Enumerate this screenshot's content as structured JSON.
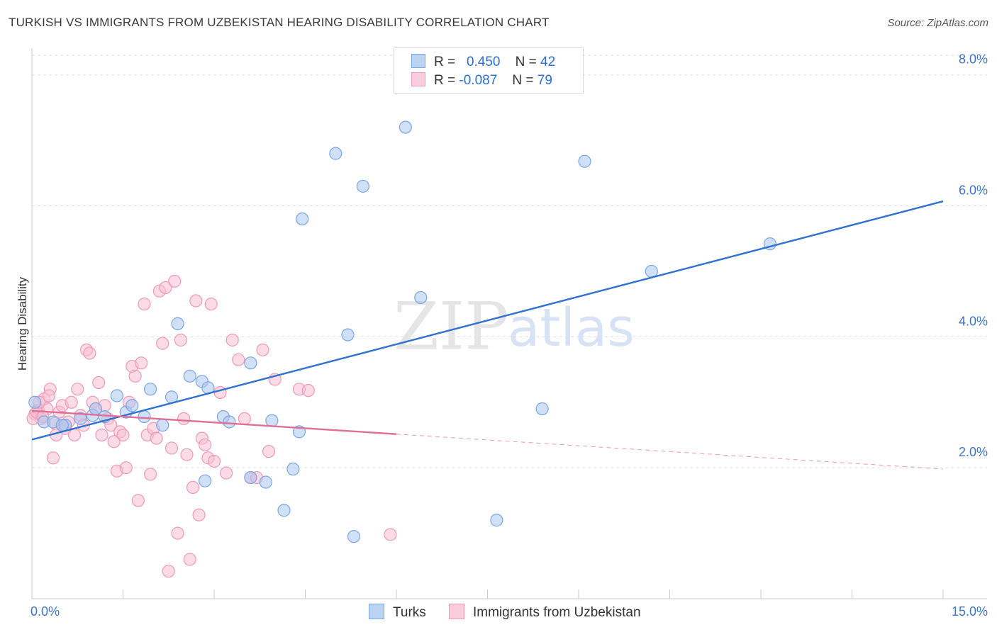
{
  "title": "TURKISH VS IMMIGRANTS FROM UZBEKISTAN HEARING DISABILITY CORRELATION CHART",
  "source": "Source: ZipAtlas.com",
  "watermark": {
    "zip": "ZIP",
    "atlas": "atlas"
  },
  "legend": {
    "turks": {
      "r_label": "R =",
      "r_value": "0.450",
      "n_label": "N =",
      "n_value": "42"
    },
    "uzbek": {
      "r_label": "R =",
      "r_value": "-0.087",
      "n_label": "N =",
      "n_value": "79"
    }
  },
  "bottom_legend": {
    "turks": "Turks",
    "uzbek": "Immigrants from Uzbekistan"
  },
  "chart_data": {
    "type": "scatter",
    "title": "TURKISH VS IMMIGRANTS FROM UZBEKISTAN HEARING DISABILITY CORRELATION CHART",
    "xlabel": "",
    "ylabel": "Hearing Disability",
    "xlim": [
      0,
      15
    ],
    "ylim": [
      0,
      8.3
    ],
    "x_tick_labels": [
      "0.0%",
      "15.0%"
    ],
    "y_ticks": [
      2,
      4,
      6,
      8
    ],
    "y_tick_labels": [
      "2.0%",
      "4.0%",
      "6.0%",
      "8.0%"
    ],
    "grid": true,
    "colors": {
      "turks_fill": "#aac7ef",
      "turks_stroke": "#7ba5e3",
      "turks_line": "#2f72d0",
      "uzbek_fill": "#f7bfd1",
      "uzbek_stroke": "#ee99b6",
      "uzbek_line": "#e06d96",
      "grid": "#dddddd",
      "tick": "#3f73c9"
    },
    "series": [
      {
        "name": "Turks",
        "trend": {
          "x": [
            0,
            15
          ],
          "y": [
            2.43,
            6.07
          ],
          "dashed_from": null
        },
        "points": [
          [
            0.05,
            3.0
          ],
          [
            0.2,
            2.7
          ],
          [
            0.35,
            2.7
          ],
          [
            0.55,
            2.65
          ],
          [
            0.8,
            2.75
          ],
          [
            1.0,
            2.8
          ],
          [
            1.05,
            2.9
          ],
          [
            1.4,
            3.1
          ],
          [
            1.55,
            2.85
          ],
          [
            1.65,
            2.95
          ],
          [
            1.85,
            2.78
          ],
          [
            1.95,
            3.2
          ],
          [
            2.15,
            2.65
          ],
          [
            2.3,
            3.08
          ],
          [
            2.4,
            4.2
          ],
          [
            2.6,
            3.4
          ],
          [
            2.8,
            3.32
          ],
          [
            2.9,
            3.22
          ],
          [
            2.85,
            1.8
          ],
          [
            3.15,
            2.78
          ],
          [
            3.25,
            2.7
          ],
          [
            3.6,
            3.6
          ],
          [
            3.6,
            1.85
          ],
          [
            3.85,
            1.78
          ],
          [
            3.95,
            2.72
          ],
          [
            4.15,
            1.35
          ],
          [
            4.3,
            1.98
          ],
          [
            4.4,
            2.55
          ],
          [
            4.45,
            5.8
          ],
          [
            5.0,
            6.8
          ],
          [
            5.2,
            4.03
          ],
          [
            5.3,
            0.95
          ],
          [
            5.45,
            6.3
          ],
          [
            6.15,
            7.2
          ],
          [
            6.4,
            4.6
          ],
          [
            7.65,
            1.2
          ],
          [
            8.4,
            2.9
          ],
          [
            9.1,
            6.68
          ],
          [
            10.2,
            5.0
          ],
          [
            12.15,
            5.42
          ],
          [
            0.5,
            2.65
          ],
          [
            1.2,
            2.78
          ]
        ]
      },
      {
        "name": "Immigrants from Uzbekistan",
        "trend": {
          "x": [
            0,
            15
          ],
          "y": [
            2.87,
            1.98
          ],
          "dashed_from": 6.0
        },
        "points": [
          [
            0.05,
            2.82
          ],
          [
            0.1,
            2.88
          ],
          [
            0.15,
            2.75
          ],
          [
            0.2,
            3.05
          ],
          [
            0.25,
            2.9
          ],
          [
            0.3,
            3.2
          ],
          [
            0.35,
            2.15
          ],
          [
            0.4,
            2.5
          ],
          [
            0.45,
            2.85
          ],
          [
            0.5,
            2.95
          ],
          [
            0.55,
            2.6
          ],
          [
            0.6,
            2.7
          ],
          [
            0.65,
            3.0
          ],
          [
            0.7,
            2.5
          ],
          [
            0.75,
            3.2
          ],
          [
            0.8,
            2.8
          ],
          [
            0.85,
            2.65
          ],
          [
            0.9,
            3.8
          ],
          [
            0.95,
            3.75
          ],
          [
            1.0,
            3.0
          ],
          [
            1.05,
            2.9
          ],
          [
            1.1,
            3.3
          ],
          [
            1.15,
            2.5
          ],
          [
            1.2,
            2.95
          ],
          [
            1.25,
            2.75
          ],
          [
            1.3,
            2.65
          ],
          [
            1.35,
            2.4
          ],
          [
            1.4,
            1.95
          ],
          [
            1.45,
            2.55
          ],
          [
            1.5,
            2.5
          ],
          [
            1.55,
            2.0
          ],
          [
            1.6,
            3.0
          ],
          [
            1.65,
            3.55
          ],
          [
            1.7,
            3.4
          ],
          [
            1.75,
            1.5
          ],
          [
            1.8,
            3.6
          ],
          [
            1.85,
            4.5
          ],
          [
            1.9,
            2.5
          ],
          [
            1.95,
            1.9
          ],
          [
            2.0,
            2.6
          ],
          [
            2.05,
            2.45
          ],
          [
            2.1,
            4.7
          ],
          [
            2.15,
            3.9
          ],
          [
            2.2,
            4.75
          ],
          [
            2.25,
            0.42
          ],
          [
            2.3,
            2.3
          ],
          [
            2.35,
            4.85
          ],
          [
            2.4,
            1.0
          ],
          [
            2.45,
            3.95
          ],
          [
            2.5,
            2.75
          ],
          [
            2.55,
            2.2
          ],
          [
            2.6,
            0.6
          ],
          [
            2.65,
            1.7
          ],
          [
            2.7,
            4.55
          ],
          [
            2.75,
            1.28
          ],
          [
            2.8,
            2.45
          ],
          [
            2.85,
            2.35
          ],
          [
            2.9,
            2.15
          ],
          [
            2.95,
            4.5
          ],
          [
            3.0,
            2.1
          ],
          [
            3.1,
            3.15
          ],
          [
            3.2,
            1.92
          ],
          [
            3.3,
            3.95
          ],
          [
            3.4,
            3.65
          ],
          [
            3.5,
            2.75
          ],
          [
            3.6,
            1.85
          ],
          [
            3.7,
            1.85
          ],
          [
            3.8,
            3.8
          ],
          [
            3.9,
            2.25
          ],
          [
            4.0,
            3.35
          ],
          [
            4.4,
            3.2
          ],
          [
            4.55,
            3.18
          ],
          [
            5.9,
            0.98
          ],
          [
            0.02,
            2.75
          ],
          [
            0.08,
            2.85
          ],
          [
            0.12,
            3.0
          ],
          [
            0.18,
            2.78
          ],
          [
            0.28,
            3.1
          ],
          [
            0.38,
            2.68
          ]
        ]
      }
    ]
  }
}
